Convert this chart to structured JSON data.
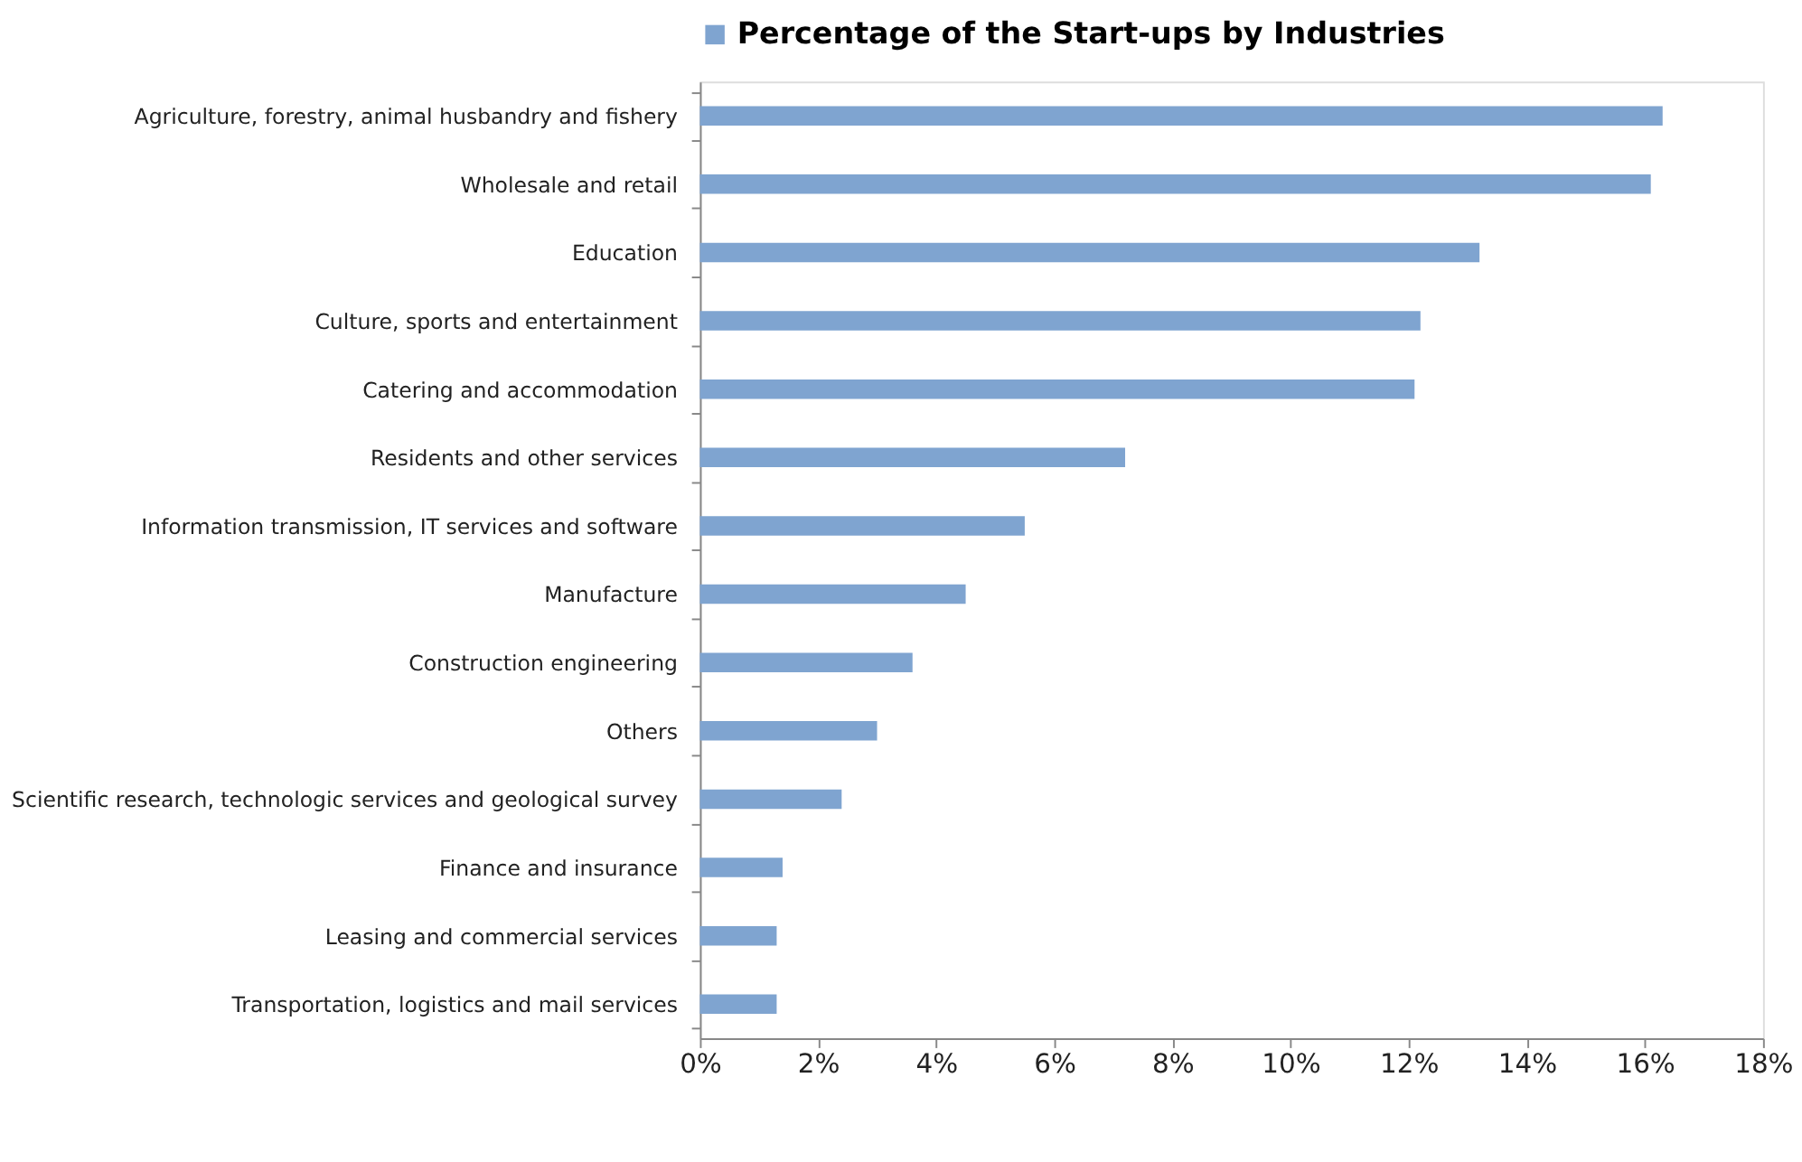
{
  "chart_data": {
    "type": "bar",
    "orientation": "horizontal",
    "categories": [
      "Agriculture, forestry, animal husbandry and fishery",
      "Wholesale and retail",
      "Education",
      "Culture, sports and entertainment",
      "Catering and accommodation",
      "Residents and other services",
      "Information transmission, IT services and software",
      "Manufacture",
      "Construction engineering",
      "Others",
      "Scientific research, technologic services and geological survey",
      "Finance and insurance",
      "Leasing and commercial services",
      "Transportation, logistics and mail services"
    ],
    "series": [
      {
        "name": "Percentage of the Start-ups by Industries",
        "color": "#7fa4d0",
        "values": [
          16.3,
          16.1,
          13.2,
          12.2,
          12.1,
          7.2,
          5.5,
          4.5,
          3.6,
          3.0,
          2.4,
          1.4,
          1.3,
          1.3
        ]
      }
    ],
    "xlim": [
      0,
      18
    ],
    "xticks": [
      {
        "value": 0,
        "label": "0%"
      },
      {
        "value": 2,
        "label": "2%"
      },
      {
        "value": 4,
        "label": "4%"
      },
      {
        "value": 6,
        "label": "6%"
      },
      {
        "value": 8,
        "label": "8%"
      },
      {
        "value": 10,
        "label": "10%"
      },
      {
        "value": 12,
        "label": "12%"
      },
      {
        "value": 14,
        "label": "14%"
      },
      {
        "value": 16,
        "label": "16%"
      },
      {
        "value": 18,
        "label": "18%"
      }
    ],
    "grid": false,
    "legend": "top"
  }
}
